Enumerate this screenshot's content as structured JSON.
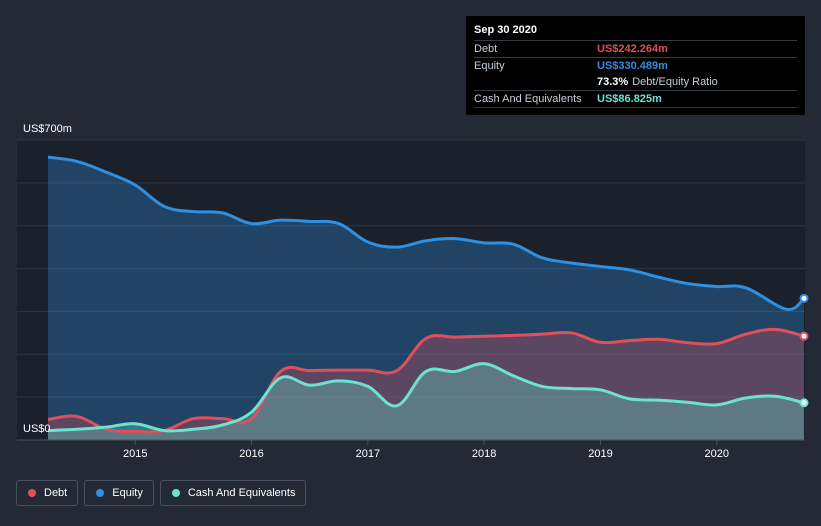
{
  "colors": {
    "debt": "#e0505a",
    "equity": "#2f8fe0",
    "cash": "#6be3d0",
    "background": "#232a36",
    "plot_bg": "#1b212b"
  },
  "tooltip": {
    "date": "Sep 30 2020",
    "rows": [
      {
        "name": "Debt",
        "value": "US$242.264m"
      },
      {
        "name": "Equity",
        "value": "US$330.489m"
      },
      {
        "name": "",
        "value": "73.3%",
        "suffix": "Debt/Equity Ratio"
      },
      {
        "name": "Cash And Equivalents",
        "value": "US$86.825m"
      }
    ]
  },
  "legend": [
    {
      "key": "debt",
      "label": "Debt"
    },
    {
      "key": "equity",
      "label": "Equity"
    },
    {
      "key": "cash",
      "label": "Cash And Equivalents"
    }
  ],
  "chart_data": {
    "type": "area",
    "title": "",
    "xlabel": "",
    "ylabel": "",
    "y_top_label": "US$700m",
    "y_bottom_label": "US$0",
    "ylim": [
      0,
      700
    ],
    "xlim": [
      2014.25,
      2020.75
    ],
    "x_ticks": [
      2015,
      2016,
      2017,
      2018,
      2019,
      2020
    ],
    "x_tick_labels": [
      "2015",
      "2016",
      "2017",
      "2018",
      "2019",
      "2020"
    ],
    "series": [
      {
        "name": "Equity",
        "key": "equity",
        "points": [
          [
            2014.25,
            660
          ],
          [
            2014.5,
            650
          ],
          [
            2014.75,
            625
          ],
          [
            2015.0,
            595
          ],
          [
            2015.25,
            545
          ],
          [
            2015.5,
            533
          ],
          [
            2015.75,
            530
          ],
          [
            2016.0,
            505
          ],
          [
            2016.25,
            513
          ],
          [
            2016.5,
            510
          ],
          [
            2016.75,
            505
          ],
          [
            2017.0,
            462
          ],
          [
            2017.25,
            450
          ],
          [
            2017.5,
            465
          ],
          [
            2017.75,
            470
          ],
          [
            2018.0,
            460
          ],
          [
            2018.25,
            457
          ],
          [
            2018.5,
            425
          ],
          [
            2018.75,
            413
          ],
          [
            2019.0,
            405
          ],
          [
            2019.25,
            397
          ],
          [
            2019.5,
            380
          ],
          [
            2019.75,
            365
          ],
          [
            2020.0,
            358
          ],
          [
            2020.25,
            355
          ],
          [
            2020.6,
            305
          ],
          [
            2020.75,
            330.489
          ]
        ]
      },
      {
        "name": "Debt",
        "key": "debt",
        "points": [
          [
            2014.25,
            48
          ],
          [
            2014.5,
            55
          ],
          [
            2014.75,
            25
          ],
          [
            2015.0,
            20
          ],
          [
            2015.25,
            22
          ],
          [
            2015.5,
            50
          ],
          [
            2015.75,
            50
          ],
          [
            2016.0,
            50
          ],
          [
            2016.25,
            160
          ],
          [
            2016.5,
            162
          ],
          [
            2016.75,
            163
          ],
          [
            2017.0,
            163
          ],
          [
            2017.25,
            162
          ],
          [
            2017.5,
            237
          ],
          [
            2017.75,
            240
          ],
          [
            2018.0,
            242
          ],
          [
            2018.25,
            244
          ],
          [
            2018.5,
            247
          ],
          [
            2018.75,
            250
          ],
          [
            2019.0,
            228
          ],
          [
            2019.25,
            232
          ],
          [
            2019.5,
            235
          ],
          [
            2019.75,
            227
          ],
          [
            2020.0,
            225
          ],
          [
            2020.25,
            247
          ],
          [
            2020.5,
            258
          ],
          [
            2020.75,
            242.264
          ]
        ]
      },
      {
        "name": "Cash And Equivalents",
        "key": "cash",
        "points": [
          [
            2014.25,
            22
          ],
          [
            2014.5,
            25
          ],
          [
            2014.75,
            30
          ],
          [
            2015.0,
            38
          ],
          [
            2015.25,
            22
          ],
          [
            2015.5,
            25
          ],
          [
            2015.75,
            35
          ],
          [
            2016.0,
            65
          ],
          [
            2016.25,
            145
          ],
          [
            2016.5,
            128
          ],
          [
            2016.75,
            138
          ],
          [
            2017.0,
            125
          ],
          [
            2017.25,
            80
          ],
          [
            2017.5,
            160
          ],
          [
            2017.75,
            160
          ],
          [
            2018.0,
            178
          ],
          [
            2018.25,
            150
          ],
          [
            2018.5,
            125
          ],
          [
            2018.75,
            120
          ],
          [
            2019.0,
            117
          ],
          [
            2019.25,
            96
          ],
          [
            2019.5,
            93
          ],
          [
            2019.75,
            88
          ],
          [
            2020.0,
            82
          ],
          [
            2020.25,
            98
          ],
          [
            2020.5,
            102
          ],
          [
            2020.75,
            86.825
          ]
        ]
      }
    ]
  }
}
